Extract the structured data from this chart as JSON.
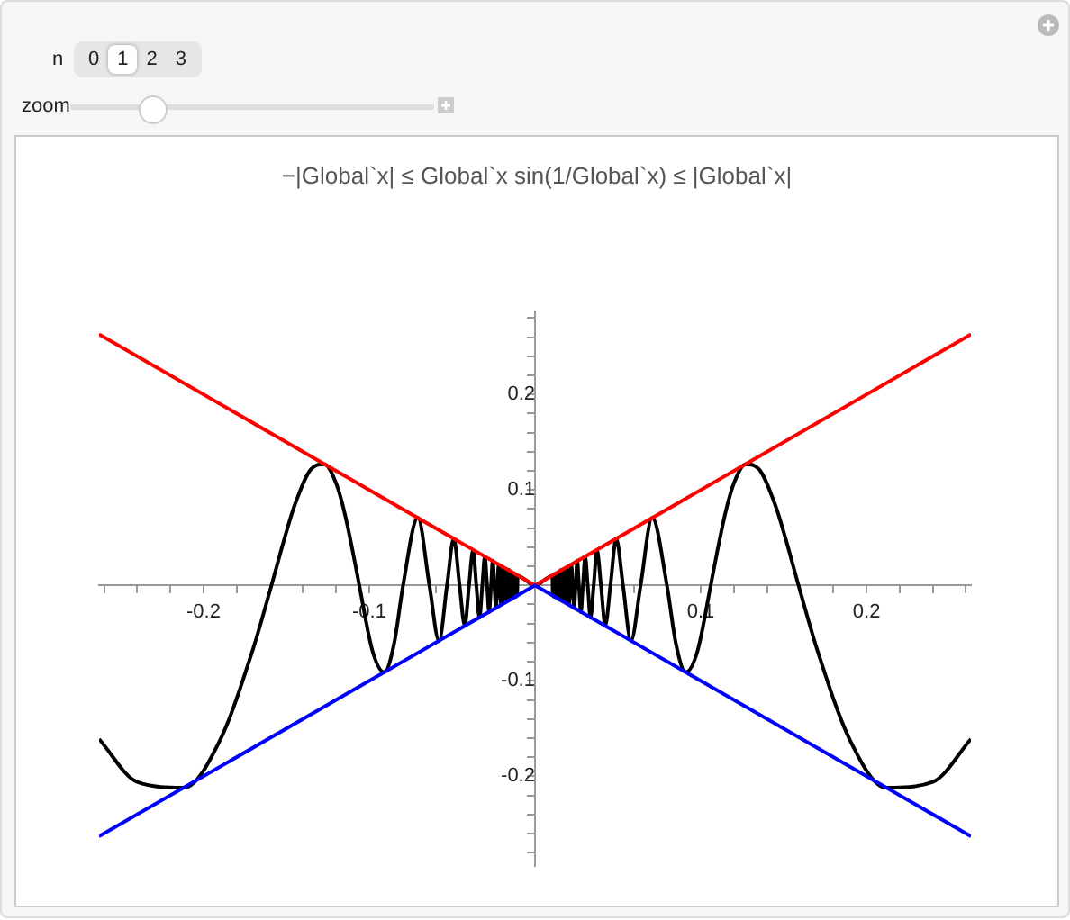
{
  "chart_data": {
    "type": "line",
    "title": "−|Global`x| ≤ Global`x sin(1/Global`x) ≤ |Global`x|",
    "annotations": [
      "n",
      "0",
      "1",
      "2",
      "3",
      "zoom"
    ],
    "xlim": [
      -0.263,
      0.263
    ],
    "ylim": [
      -0.294,
      0.287
    ],
    "xticks": [
      {
        "value": -0.26,
        "label": null
      },
      {
        "value": -0.24,
        "label": null
      },
      {
        "value": -0.22,
        "label": null
      },
      -0.2,
      {
        "value": -0.18,
        "label": null
      },
      {
        "value": -0.16,
        "label": null
      },
      {
        "value": -0.14,
        "label": null
      },
      {
        "value": -0.12,
        "label": null
      },
      -0.1,
      {
        "value": -0.08,
        "label": null
      },
      {
        "value": -0.06,
        "label": null
      },
      {
        "value": -0.04,
        "label": null
      },
      {
        "value": -0.02,
        "label": null
      },
      {
        "value": 0.02,
        "label": null
      },
      {
        "value": 0.04,
        "label": null
      },
      {
        "value": 0.06,
        "label": null
      },
      {
        "value": 0.08,
        "label": null
      },
      0.1,
      {
        "value": 0.12,
        "label": null
      },
      {
        "value": 0.14,
        "label": null
      },
      {
        "value": 0.16,
        "label": null
      },
      {
        "value": 0.18,
        "label": null
      },
      0.2,
      {
        "value": 0.22,
        "label": null
      },
      {
        "value": 0.24,
        "label": null
      },
      {
        "value": 0.26,
        "label": null
      }
    ],
    "yticks": [
      {
        "value": -0.28,
        "label": null
      },
      {
        "value": -0.26,
        "label": null
      },
      {
        "value": -0.24,
        "label": null
      },
      {
        "value": -0.22,
        "label": null
      },
      -0.2,
      {
        "value": -0.18,
        "label": null
      },
      {
        "value": -0.16,
        "label": null
      },
      {
        "value": -0.14,
        "label": null
      },
      {
        "value": -0.12,
        "label": null
      },
      -0.1,
      {
        "value": -0.08,
        "label": null
      },
      {
        "value": -0.06,
        "label": null
      },
      {
        "value": -0.04,
        "label": null
      },
      {
        "value": -0.02,
        "label": null
      },
      {
        "value": 0.02,
        "label": null
      },
      {
        "value": 0.04,
        "label": null
      },
      {
        "value": 0.06,
        "label": null
      },
      {
        "value": 0.08,
        "label": null
      },
      0.1,
      {
        "value": 0.12,
        "label": null
      },
      {
        "value": 0.14,
        "label": null
      },
      {
        "value": 0.16,
        "label": null
      },
      {
        "value": 0.18,
        "label": null
      },
      0.2,
      {
        "value": 0.22,
        "label": null
      },
      {
        "value": 0.24,
        "label": null
      },
      {
        "value": 0.26,
        "label": null
      },
      {
        "value": 0.28,
        "label": null
      }
    ],
    "series": [
      {
        "color": "#0000ff",
        "x": [
          -0.263,
          0,
          0.263
        ],
        "values": [
          -0.263,
          0,
          -0.263
        ]
      },
      {
        "color": "#ff0000",
        "x": [
          -0.263,
          0,
          0.263
        ],
        "values": [
          0.263,
          0,
          0.263
        ]
      },
      {
        "color": "#000000",
        "x": [
          -0.263,
          -0.24,
          -0.212,
          -0.19,
          -0.17,
          -0.159,
          -0.152,
          -0.145,
          -0.135,
          -0.127,
          -0.12,
          -0.115,
          -0.11,
          -0.106,
          -0.098,
          -0.0909,
          -0.085,
          -0.0796,
          -0.0707,
          -0.0637,
          -0.0579,
          -0.0531,
          -0.049,
          -0.0455,
          -0.0424,
          -0.0398,
          -0.0374,
          -0.0354,
          -0.0335,
          -0.0318,
          -0.0303,
          -0.0289,
          -0.0277,
          -0.0265,
          -0.0255,
          -0.0245,
          -0.0236,
          -0.0227,
          -0.0219,
          -0.0212,
          -0.0205,
          -0.0199,
          -0.0193,
          -0.0187,
          -0.0182,
          -0.0177,
          -0.0172,
          -0.0168,
          -0.0164,
          -0.01553,
          -0.01481,
          -0.01415,
          -0.01354,
          -0.01299,
          -0.01248,
          -0.01201,
          -0.01158,
          -0.01117,
          -0.01079,
          -0.01044,
          0,
          0.01044,
          0.01079,
          0.01117,
          0.01158,
          0.01201,
          0.01248,
          0.01299,
          0.01354,
          0.01415,
          0.01481,
          0.01553,
          0.0164,
          0.0168,
          0.0172,
          0.0177,
          0.0182,
          0.0187,
          0.0193,
          0.0199,
          0.0205,
          0.0212,
          0.0219,
          0.0227,
          0.0236,
          0.0245,
          0.0255,
          0.0265,
          0.0277,
          0.0289,
          0.0303,
          0.0318,
          0.0335,
          0.0354,
          0.0374,
          0.0398,
          0.0424,
          0.0455,
          0.049,
          0.0531,
          0.0579,
          0.0637,
          0.0707,
          0.0796,
          0.085,
          0.0909,
          0.098,
          0.106,
          0.11,
          0.115,
          0.12,
          0.127,
          0.135,
          0.145,
          0.152,
          0.159,
          0.17,
          0.19,
          0.212,
          0.24,
          0.263
        ],
        "values": [
          -0.161,
          -0.206,
          -0.212,
          -0.162,
          -0.066,
          0,
          0.044,
          0.084,
          0.122,
          0.127,
          0.107,
          0.077,
          0.036,
          0,
          -0.069,
          -0.091,
          -0.061,
          0,
          0.071,
          0,
          -0.058,
          0,
          0.049,
          0,
          -0.042,
          0,
          0.037,
          0,
          -0.034,
          0,
          0.03,
          0,
          -0.028,
          0,
          0.026,
          0,
          -0.024,
          0,
          0.022,
          0,
          -0.02,
          0,
          0.019,
          0,
          -0.018,
          0,
          0.017,
          0,
          -0.016,
          0.016,
          -0.015,
          0.014,
          -0.014,
          0.013,
          -0.012,
          0.012,
          -0.012,
          0.011,
          -0.011,
          0.01,
          0,
          0.01,
          -0.011,
          0.011,
          -0.012,
          0.012,
          -0.012,
          0.013,
          -0.014,
          0.014,
          -0.015,
          0.016,
          -0.016,
          0,
          0.017,
          0,
          -0.018,
          0,
          0.019,
          0,
          -0.02,
          0,
          0.022,
          0,
          -0.024,
          0,
          0.026,
          0,
          -0.028,
          0,
          0.03,
          0,
          -0.034,
          0,
          0.037,
          0,
          -0.042,
          0,
          0.049,
          0,
          -0.058,
          0,
          0.071,
          0,
          -0.061,
          -0.091,
          -0.069,
          0,
          0.036,
          0.077,
          0.107,
          0.127,
          0.122,
          0.084,
          0.044,
          0,
          -0.066,
          -0.162,
          -0.212,
          -0.206,
          -0.161
        ]
      }
    ]
  }
}
